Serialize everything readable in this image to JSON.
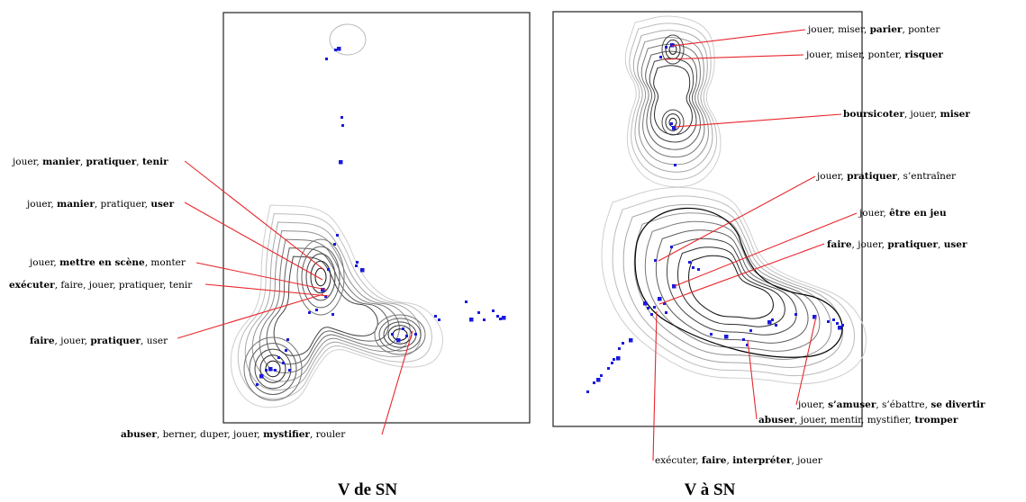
{
  "panels": [
    {
      "caption": "V de SN",
      "labels": [
        [
          {
            "t": "jouer, ",
            "b": false
          },
          {
            "t": "manier",
            "b": true
          },
          {
            "t": ", ",
            "b": false
          },
          {
            "t": "pratiquer",
            "b": true
          },
          {
            "t": ", ",
            "b": false
          },
          {
            "t": "tenir",
            "b": true
          }
        ],
        [
          {
            "t": "jouer, ",
            "b": false
          },
          {
            "t": "manier",
            "b": true
          },
          {
            "t": ", pratiquer, ",
            "b": false
          },
          {
            "t": "user",
            "b": true
          }
        ],
        [
          {
            "t": "jouer, ",
            "b": false
          },
          {
            "t": "mettre en scène",
            "b": true
          },
          {
            "t": ", monter",
            "b": false
          }
        ],
        [
          {
            "t": "exécuter",
            "b": true
          },
          {
            "t": ", faire, jouer, pratiquer, tenir",
            "b": false
          }
        ],
        [
          {
            "t": "faire",
            "b": true
          },
          {
            "t": ", jouer, ",
            "b": false
          },
          {
            "t": "pratiquer",
            "b": true
          },
          {
            "t": ", user",
            "b": false
          }
        ],
        [
          {
            "t": "abuser",
            "b": true
          },
          {
            "t": ", berner, duper, jouer, ",
            "b": false
          },
          {
            "t": "mystifier",
            "b": true
          },
          {
            "t": ", rouler",
            "b": false
          }
        ]
      ]
    },
    {
      "caption": "V à SN",
      "labels": [
        [
          {
            "t": "jouer, miser, ",
            "b": false
          },
          {
            "t": "parier",
            "b": true
          },
          {
            "t": ", ponter",
            "b": false
          }
        ],
        [
          {
            "t": "jouer, miser, ponter, ",
            "b": false
          },
          {
            "t": "risquer",
            "b": true
          }
        ],
        [
          {
            "t": "boursicoter",
            "b": true
          },
          {
            "t": ", jouer, ",
            "b": false
          },
          {
            "t": "miser",
            "b": true
          }
        ],
        [
          {
            "t": "jouer, ",
            "b": false
          },
          {
            "t": "pratiquer",
            "b": true
          },
          {
            "t": ", s’entraîner",
            "b": false
          }
        ],
        [
          {
            "t": "jouer, ",
            "b": false
          },
          {
            "t": "être en jeu",
            "b": true
          }
        ],
        [
          {
            "t": "faire",
            "b": true
          },
          {
            "t": ", jouer, ",
            "b": false
          },
          {
            "t": "pratiquer",
            "b": true
          },
          {
            "t": ", ",
            "b": false
          },
          {
            "t": "user",
            "b": true
          }
        ],
        [
          {
            "t": "jouer, ",
            "b": false
          },
          {
            "t": "s’amuser",
            "b": true
          },
          {
            "t": ", s’ébattre, ",
            "b": false
          },
          {
            "t": "se divertir",
            "b": true
          }
        ],
        [
          {
            "t": "abuser",
            "b": true
          },
          {
            "t": ", jouer, mentir, mystifier, ",
            "b": false
          },
          {
            "t": "tromper",
            "b": true
          }
        ],
        [
          {
            "t": "exécuter, ",
            "b": false
          },
          {
            "t": "faire",
            "b": true
          },
          {
            "t": ", ",
            "b": false
          },
          {
            "t": "interpréter",
            "b": true
          },
          {
            "t": ", jouer",
            "b": false
          }
        ]
      ]
    }
  ],
  "colors": {
    "point": "#1a1adb",
    "leader": "#e8262c",
    "contour_dark": "#1a1a1a",
    "contour_light": "#c4c4c4"
  }
}
